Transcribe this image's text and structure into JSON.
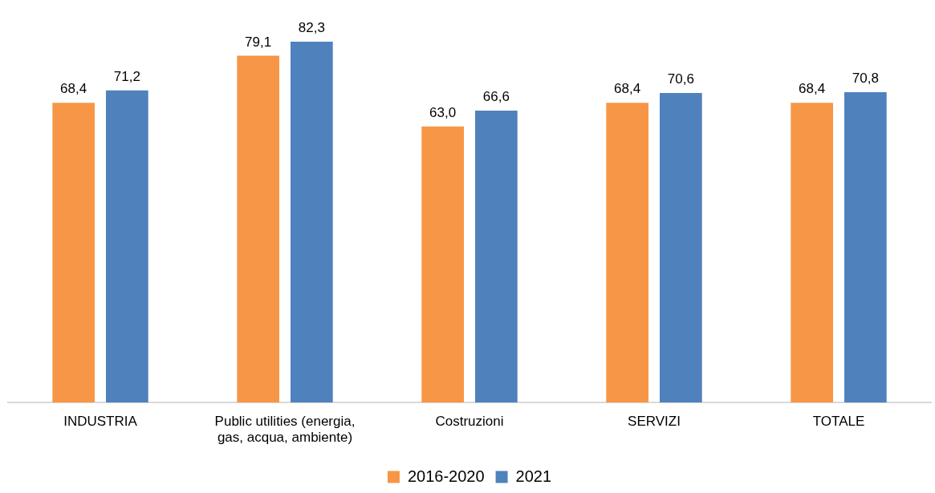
{
  "chart_data": {
    "type": "bar",
    "categories": [
      "INDUSTRIA",
      "Public utilities (energia, gas, acqua, ambiente)",
      "Costruzioni",
      "SERVIZI",
      "TOTALE"
    ],
    "series": [
      {
        "name": "2016-2020",
        "color": "#f79646",
        "values": [
          68.4,
          79.1,
          63.0,
          68.4,
          68.4
        ],
        "value_labels": [
          "68,4",
          "79,1",
          "63,0",
          "68,4",
          "68,4"
        ]
      },
      {
        "name": "2021",
        "color": "#4f81bd",
        "values": [
          71.2,
          82.3,
          66.6,
          70.6,
          70.8
        ],
        "value_labels": [
          "71,2",
          "82,3",
          "66,6",
          "70,6",
          "70,8"
        ]
      }
    ],
    "legend": "bottom",
    "grid": false
  }
}
